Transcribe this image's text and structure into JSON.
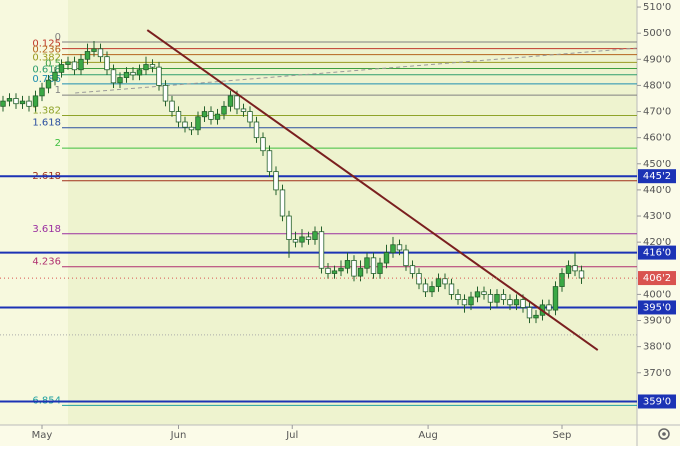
{
  "chart_data": {
    "type": "candlestick",
    "open": [
      472,
      474,
      475,
      473,
      474,
      472,
      476,
      479,
      482,
      485,
      488,
      489,
      486,
      490,
      493,
      494,
      491,
      486,
      481,
      483,
      485,
      484,
      486,
      488,
      487,
      480,
      474,
      470,
      466,
      464,
      463,
      468,
      470,
      467,
      469,
      472,
      476,
      471,
      470,
      466,
      460,
      455,
      447,
      440,
      430,
      421,
      420,
      422,
      421,
      424,
      410,
      408,
      409,
      410,
      413,
      407,
      410,
      414,
      408,
      412,
      416,
      419,
      417,
      411,
      408,
      404,
      401,
      403,
      406,
      404,
      400,
      398,
      396,
      399,
      401,
      400,
      397,
      400,
      398,
      396,
      398,
      395,
      391,
      392,
      396,
      394,
      403,
      408,
      411,
      409
    ],
    "high": [
      476,
      477,
      477,
      476,
      476,
      478,
      481,
      484,
      487,
      490,
      491,
      491,
      492,
      496,
      497,
      496,
      493,
      488,
      485,
      487,
      487,
      488,
      491,
      490,
      489,
      482,
      476,
      472,
      468,
      466,
      470,
      472,
      472,
      471,
      474,
      478,
      478,
      473,
      472,
      468,
      462,
      457,
      449,
      442,
      432,
      424,
      425,
      424,
      426,
      426,
      412,
      411,
      413,
      416,
      415,
      413,
      416,
      416,
      414,
      419,
      422,
      421,
      419,
      413,
      410,
      406,
      405,
      408,
      408,
      406,
      402,
      400,
      401,
      403,
      403,
      402,
      402,
      402,
      400,
      400,
      400,
      397,
      394,
      398,
      398,
      405,
      410,
      413,
      416,
      411
    ],
    "low": [
      470,
      472,
      471,
      471,
      470,
      470,
      474,
      477,
      480,
      483,
      486,
      484,
      484,
      488,
      491,
      489,
      484,
      479,
      479,
      481,
      482,
      482,
      484,
      485,
      478,
      472,
      468,
      464,
      462,
      461,
      461,
      466,
      465,
      465,
      467,
      470,
      469,
      468,
      464,
      458,
      453,
      445,
      438,
      428,
      414,
      418,
      418,
      419,
      419,
      408,
      406,
      406,
      407,
      408,
      405,
      405,
      408,
      406,
      406,
      410,
      414,
      415,
      409,
      406,
      402,
      399,
      399,
      401,
      402,
      398,
      396,
      393,
      394,
      397,
      398,
      394,
      395,
      396,
      394,
      394,
      393,
      389,
      389,
      390,
      392,
      392,
      401,
      406,
      407,
      404
    ],
    "close": [
      474,
      475,
      473,
      474,
      472,
      476,
      479,
      482,
      485,
      488,
      489,
      486,
      490,
      493,
      494,
      491,
      486,
      481,
      483,
      485,
      484,
      486,
      488,
      487,
      480,
      474,
      470,
      466,
      464,
      463,
      468,
      470,
      467,
      469,
      472,
      476,
      471,
      470,
      466,
      460,
      455,
      447,
      440,
      430,
      421,
      420,
      422,
      421,
      424,
      410,
      408,
      409,
      410,
      413,
      407,
      410,
      414,
      408,
      412,
      416,
      419,
      417,
      411,
      408,
      404,
      401,
      403,
      406,
      404,
      400,
      398,
      396,
      399,
      401,
      400,
      397,
      400,
      398,
      396,
      398,
      395,
      391,
      392,
      396,
      394,
      403,
      408,
      411,
      409,
      406.25
    ],
    "up_color": "#3aa845",
    "down_color": "#ffffff",
    "wick_color": "#24602c",
    "xlim": [
      -0.46,
      97.54
    ],
    "ylim": [
      350,
      512.7
    ],
    "xticks": [
      {
        "value": 6,
        "label": "May"
      },
      {
        "value": 27,
        "label": "Jun"
      },
      {
        "value": 44.5,
        "label": "Jul"
      },
      {
        "value": 65.4,
        "label": "Aug"
      },
      {
        "value": 86,
        "label": "Sep"
      }
    ],
    "yticks": [
      {
        "value": 510,
        "label": "510'0"
      },
      {
        "value": 500,
        "label": "500'0"
      },
      {
        "value": 490,
        "label": "490'0"
      },
      {
        "value": 480,
        "label": "480'0"
      },
      {
        "value": 470,
        "label": "470'0"
      },
      {
        "value": 460,
        "label": "460'0"
      },
      {
        "value": 450,
        "label": "450'0"
      },
      {
        "value": 440,
        "label": "440'0"
      },
      {
        "value": 430,
        "label": "430'0"
      },
      {
        "value": 420,
        "label": "420'0"
      },
      {
        "value": 400,
        "label": "400'0"
      },
      {
        "value": 390,
        "label": "390'0"
      },
      {
        "value": 380,
        "label": "380'0"
      },
      {
        "value": 370,
        "label": "370'0"
      }
    ],
    "fib": {
      "ratios": [
        0,
        0.125,
        0.236,
        0.382,
        0.5,
        0.618,
        0.786,
        1,
        1.382,
        1.618,
        2,
        2.618,
        3.618,
        4.236,
        6.854
      ],
      "prices": [
        496.6,
        494.1,
        491.8,
        488.8,
        486.5,
        484.1,
        480.6,
        476.3,
        468.5,
        463.8,
        456.0,
        443.5,
        423.2,
        410.6,
        357.5
      ],
      "colors": [
        "#808080",
        "#c0392b",
        "#b5651d",
        "#9a9a20",
        "#3f9f3f",
        "#2e9e6e",
        "#1f8fb0",
        "#808080",
        "#8fa32a",
        "#2b4fa0",
        "#3fbf3f",
        "#a0301a",
        "#9a2fa0",
        "#b03070",
        "#20a0a0"
      ]
    },
    "price_levels": [
      {
        "value": 445.25,
        "label": "445'2"
      },
      {
        "value": 416,
        "label": "416'0"
      },
      {
        "value": 395,
        "label": "395'0"
      },
      {
        "value": 359,
        "label": "359'0"
      }
    ],
    "level_color": "#1c33b5",
    "last_price": {
      "value": 406.25,
      "label": "406'2"
    },
    "last_price_color": "#d9534f",
    "trendline": {
      "x": [
        22.2,
        91.5
      ],
      "y": [
        501.2,
        378.7
      ],
      "color": "#7a1f1f"
    },
    "dashed_line": {
      "x": [
        11.1,
        97.5
      ],
      "y": [
        477.1,
        494.3
      ],
      "color": "#9a9a9a"
    },
    "dotted_level": 384.5
  }
}
